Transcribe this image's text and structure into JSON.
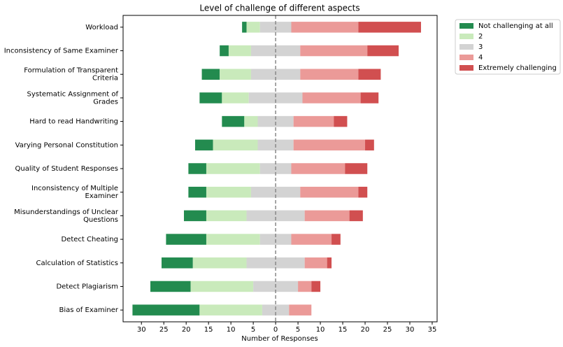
{
  "chart_data": {
    "type": "diverging_bar",
    "title": "Level of challenge of different aspects",
    "x_label": "Number of Responses",
    "categories": [
      "Workload",
      "Inconsistency of Same Examiner",
      "Formulation of Transparent\nCriteria",
      "Systematic Assignment of\nGrades",
      "Hard to read Handwriting",
      "Varying Personal Constitution",
      "Quality of Student Responses",
      "Inconsistency of Multiple\nExaminer",
      "Misunderstandings of Unclear\nQuestions",
      "Detect Cheating",
      "Calculation of Statistics",
      "Detect Plagiarism",
      "Bias of Examiner"
    ],
    "series": [
      {
        "name": "Not challenging at all",
        "color": "#238b4f",
        "values": [
          1,
          2,
          4,
          5,
          5,
          4,
          4,
          4,
          5,
          9,
          7,
          9,
          15
        ]
      },
      {
        "name": "2",
        "color": "#c9eabb",
        "values": [
          3,
          5,
          7,
          6,
          3,
          10,
          12,
          10,
          9,
          12,
          12,
          14,
          14
        ]
      },
      {
        "name": "3",
        "color": "#d3d3d3",
        "values": [
          7,
          11,
          11,
          12,
          8,
          8,
          7,
          11,
          13,
          7,
          13,
          10,
          6
        ]
      },
      {
        "name": "4",
        "color": "#eb9a98",
        "values": [
          15,
          15,
          13,
          13,
          9,
          16,
          12,
          13,
          10,
          9,
          5,
          3,
          5
        ]
      },
      {
        "name": "Extremely challenging",
        "color": "#d14f50",
        "values": [
          14,
          7,
          5,
          4,
          3,
          2,
          5,
          2,
          3,
          2,
          1,
          2,
          0
        ]
      }
    ],
    "xlim": [
      -34.1,
      36.1
    ],
    "xticks": [
      {
        "value": -30,
        "label": "30"
      },
      {
        "value": -25,
        "label": "25"
      },
      {
        "value": -20,
        "label": "20"
      },
      {
        "value": -15,
        "label": "15"
      },
      {
        "value": -10,
        "label": "10"
      },
      {
        "value": -5,
        "label": "5"
      },
      0,
      5,
      10,
      15,
      20,
      25,
      30,
      35
    ],
    "legend": "outside-upper-right"
  }
}
